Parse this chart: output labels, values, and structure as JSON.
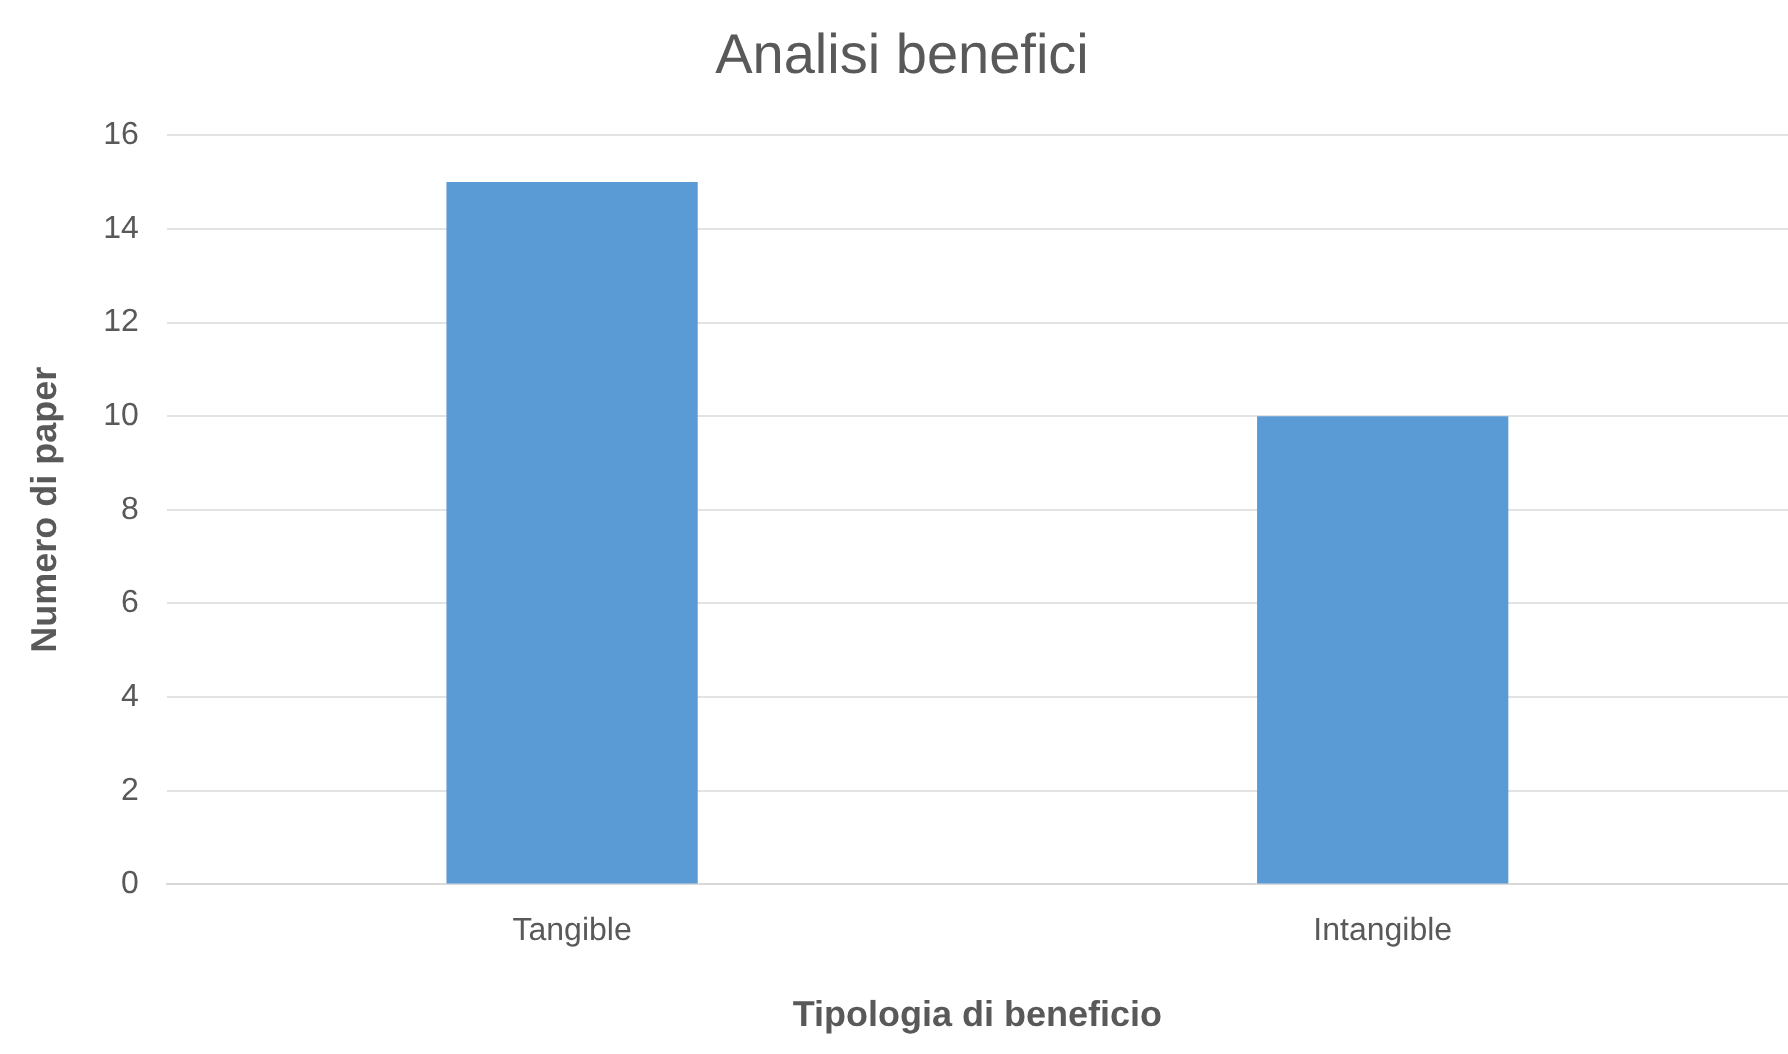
{
  "chart_data": {
    "type": "bar",
    "title": "Analisi benefici",
    "xlabel": "Tipologia di beneficio",
    "ylabel": "Numero di paper",
    "categories": [
      "Tangible",
      "Intangible"
    ],
    "values": [
      15,
      10
    ],
    "color": "#5b9bd5",
    "ylim": [
      0,
      16
    ],
    "yticks": [
      0,
      2,
      4,
      6,
      8,
      10,
      12,
      14,
      16
    ],
    "grid": "y"
  }
}
